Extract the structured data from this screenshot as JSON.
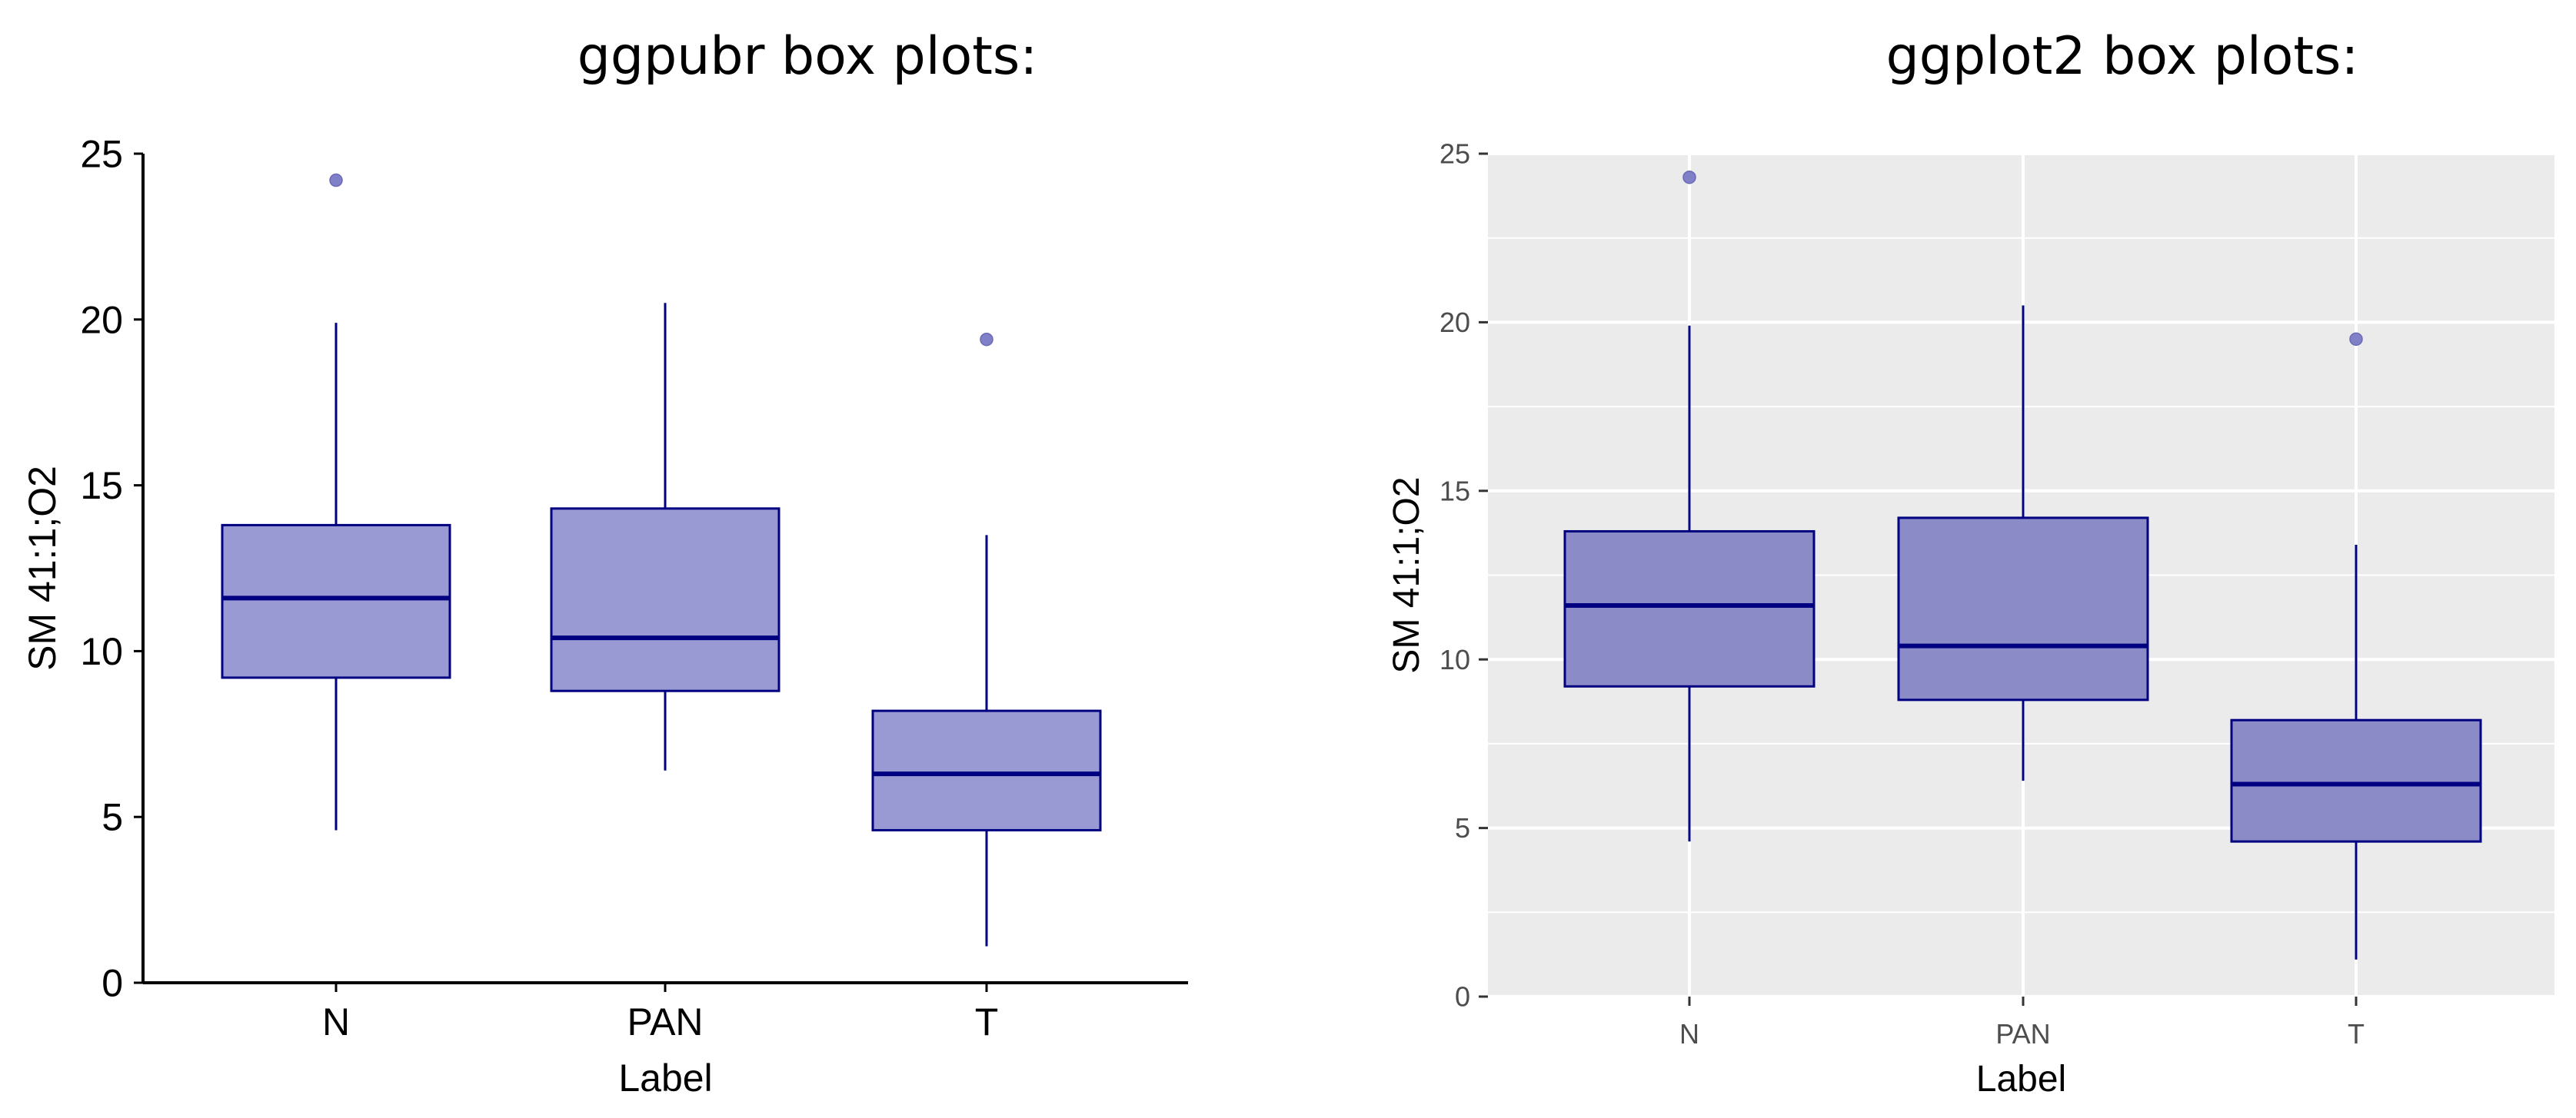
{
  "panels": {
    "left_title": "ggpubr box plots:",
    "right_title": "ggplot2 box plots:"
  },
  "chart_data": [
    {
      "type": "box",
      "style": "ggpubr",
      "title": "",
      "xlabel": "Label",
      "ylabel": "SM 41:1;O2",
      "categories": [
        "N",
        "PAN",
        "T"
      ],
      "ylim": [
        0,
        25
      ],
      "yticks": [
        0,
        5,
        10,
        15,
        20,
        25
      ],
      "grid": false,
      "background": "#ffffff",
      "fill_color": "#9999d3",
      "line_color": "#000080",
      "outlier_color": "#8080c8",
      "boxes": [
        {
          "category": "N",
          "min": 4.6,
          "q1": 9.2,
          "median": 11.6,
          "q3": 13.8,
          "max": 19.9,
          "outliers": [
            24.2
          ]
        },
        {
          "category": "PAN",
          "min": 6.4,
          "q1": 8.8,
          "median": 10.4,
          "q3": 14.3,
          "max": 20.5,
          "outliers": []
        },
        {
          "category": "T",
          "min": 1.1,
          "q1": 4.6,
          "median": 6.3,
          "q3": 8.2,
          "max": 13.5,
          "outliers": [
            19.4
          ]
        }
      ]
    },
    {
      "type": "box",
      "style": "ggplot2",
      "title": "",
      "xlabel": "Label",
      "ylabel": "SM 41:1;O2",
      "categories": [
        "N",
        "PAN",
        "T"
      ],
      "ylim": [
        0,
        25
      ],
      "yticks": [
        0,
        5,
        10,
        15,
        20,
        25
      ],
      "grid": true,
      "background": "#ebebeb",
      "fill_color": "#8b8bc8",
      "line_color": "#000080",
      "outlier_color": "#8080c8",
      "boxes": [
        {
          "category": "N",
          "min": 4.6,
          "q1": 9.2,
          "median": 11.6,
          "q3": 13.8,
          "max": 19.9,
          "outliers": [
            24.3
          ]
        },
        {
          "category": "PAN",
          "min": 6.4,
          "q1": 8.8,
          "median": 10.4,
          "q3": 14.2,
          "max": 20.5,
          "outliers": []
        },
        {
          "category": "T",
          "min": 1.1,
          "q1": 4.6,
          "median": 6.3,
          "q3": 8.2,
          "max": 13.4,
          "outliers": [
            19.5
          ]
        }
      ]
    }
  ]
}
